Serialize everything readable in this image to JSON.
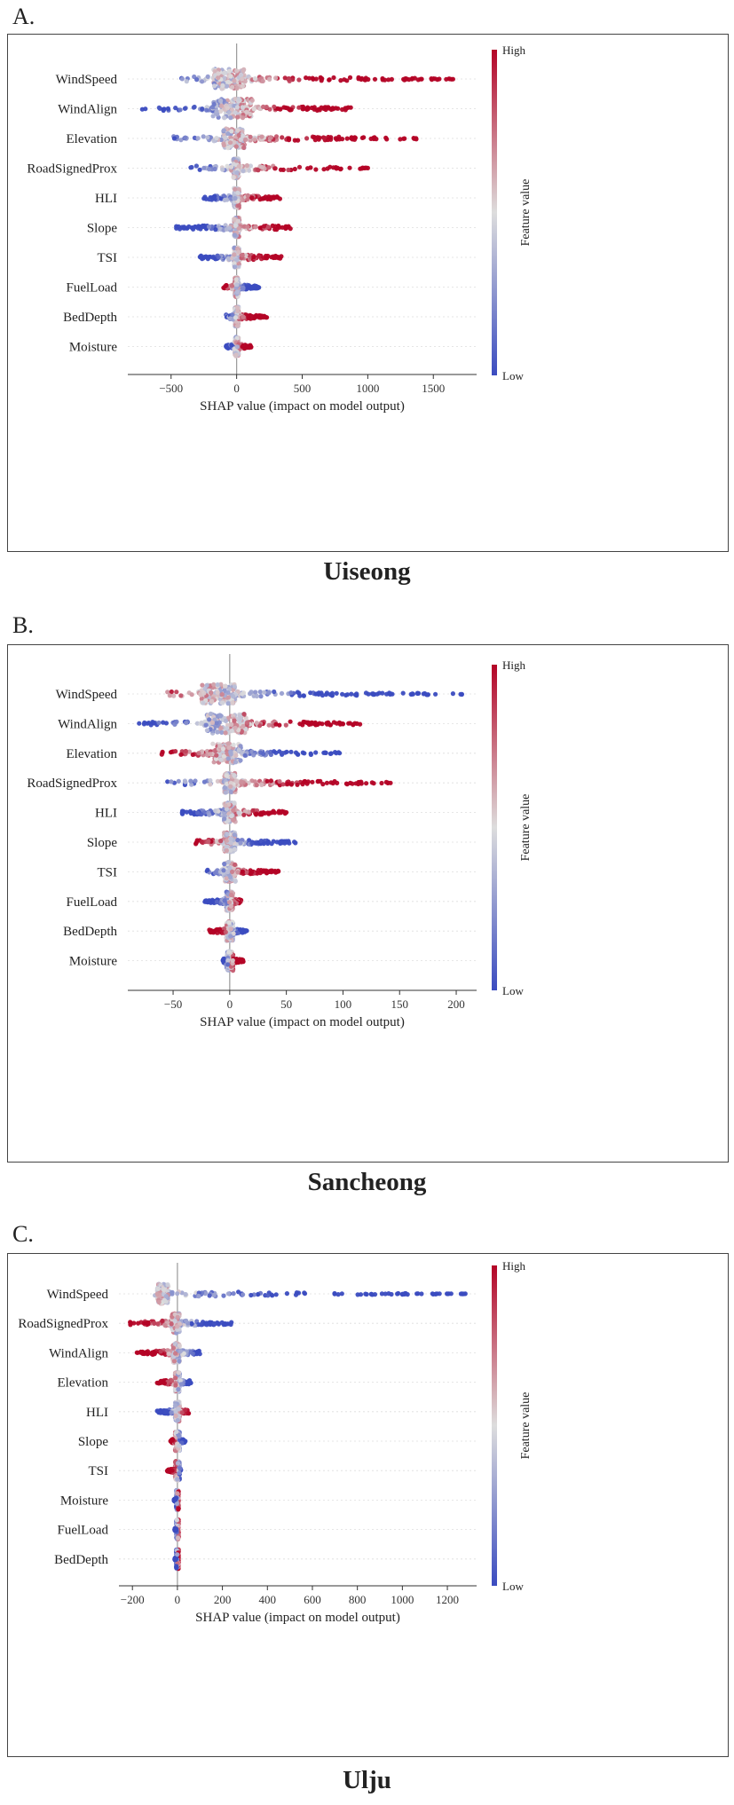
{
  "chart_data": [
    {
      "panel_label": "A.",
      "site": "Uiseong",
      "type": "scatter",
      "subtype": "beeswarm",
      "xlabel": "SHAP value (impact on model output)",
      "xticks": [
        -500,
        0,
        500,
        1000,
        1500
      ],
      "xlim": [
        -830,
        1830
      ],
      "colorbar": {
        "label": "Feature value",
        "high": "High",
        "low": "Low"
      },
      "features": [
        {
          "name": "WindSpeed",
          "min": -420,
          "max": 1650,
          "core": [
            -180,
            60
          ],
          "high_side": "positive"
        },
        {
          "name": "WindAlign",
          "min": -720,
          "max": 870,
          "core": [
            -180,
            120
          ],
          "high_side": "positive"
        },
        {
          "name": "Elevation",
          "min": -480,
          "max": 1370,
          "core": [
            -100,
            60
          ],
          "high_side": "positive"
        },
        {
          "name": "RoadSignedProx",
          "min": -350,
          "max": 1000,
          "core": [
            -25,
            15
          ],
          "high_side": "positive"
        },
        {
          "name": "HLI",
          "min": -250,
          "max": 330,
          "core": [
            -20,
            20
          ],
          "high_side": "positive"
        },
        {
          "name": "Slope",
          "min": -460,
          "max": 410,
          "core": [
            -20,
            20
          ],
          "high_side": "positive"
        },
        {
          "name": "TSI",
          "min": -280,
          "max": 340,
          "core": [
            -20,
            20
          ],
          "high_side": "positive"
        },
        {
          "name": "FuelLoad",
          "min": -100,
          "max": 170,
          "core": [
            -15,
            15
          ],
          "high_side": "negative"
        },
        {
          "name": "BedDepth",
          "min": -80,
          "max": 230,
          "core": [
            -15,
            15
          ],
          "high_side": "positive"
        },
        {
          "name": "Moisture",
          "min": -80,
          "max": 110,
          "core": [
            -15,
            15
          ],
          "high_side": "positive"
        }
      ]
    },
    {
      "panel_label": "B.",
      "site": "Sancheong",
      "type": "scatter",
      "subtype": "beeswarm",
      "xlabel": "SHAP value (impact on model output)",
      "xticks": [
        -50,
        0,
        50,
        100,
        150,
        200
      ],
      "xlim": [
        -90,
        218
      ],
      "colorbar": {
        "label": "Feature value",
        "high": "High",
        "low": "Low"
      },
      "features": [
        {
          "name": "WindSpeed",
          "min": -55,
          "max": 205,
          "core": [
            -25,
            5
          ],
          "high_side": "negative"
        },
        {
          "name": "WindAlign",
          "min": -80,
          "max": 115,
          "core": [
            -20,
            15
          ],
          "high_side": "positive"
        },
        {
          "name": "Elevation",
          "min": -60,
          "max": 97,
          "core": [
            -15,
            10
          ],
          "high_side": "negative"
        },
        {
          "name": "RoadSignedProx",
          "min": -55,
          "max": 142,
          "core": [
            -5,
            5
          ],
          "high_side": "positive"
        },
        {
          "name": "HLI",
          "min": -42,
          "max": 50,
          "core": [
            -5,
            5
          ],
          "high_side": "positive"
        },
        {
          "name": "Slope",
          "min": -30,
          "max": 58,
          "core": [
            -5,
            5
          ],
          "high_side": "negative"
        },
        {
          "name": "TSI",
          "min": -20,
          "max": 43,
          "core": [
            -5,
            5
          ],
          "high_side": "positive"
        },
        {
          "name": "FuelLoad",
          "min": -22,
          "max": 10,
          "core": [
            -3,
            3
          ],
          "high_side": "positive"
        },
        {
          "name": "BedDepth",
          "min": -18,
          "max": 15,
          "core": [
            -3,
            3
          ],
          "high_side": "negative"
        },
        {
          "name": "Moisture",
          "min": -6,
          "max": 12,
          "core": [
            -3,
            3
          ],
          "high_side": "positive"
        }
      ]
    },
    {
      "panel_label": "C.",
      "site": "Ulju",
      "type": "scatter",
      "subtype": "beeswarm",
      "xlabel": "SHAP value (impact on model output)",
      "xticks": [
        -200,
        0,
        200,
        400,
        600,
        800,
        1000,
        1200
      ],
      "xlim": [
        -260,
        1330
      ],
      "colorbar": {
        "label": "Feature value",
        "high": "High",
        "low": "Low"
      },
      "features": [
        {
          "name": "WindSpeed",
          "min": -100,
          "max": 1280,
          "core": [
            -90,
            -40
          ],
          "high_side": "negative"
        },
        {
          "name": "RoadSignedProx",
          "min": -210,
          "max": 240,
          "core": [
            -25,
            10
          ],
          "high_side": "negative"
        },
        {
          "name": "WindAlign",
          "min": -180,
          "max": 100,
          "core": [
            -20,
            10
          ],
          "high_side": "negative"
        },
        {
          "name": "Elevation",
          "min": -90,
          "max": 60,
          "core": [
            -10,
            10
          ],
          "high_side": "negative"
        },
        {
          "name": "HLI",
          "min": -90,
          "max": 50,
          "core": [
            -10,
            10
          ],
          "high_side": "positive"
        },
        {
          "name": "Slope",
          "min": -30,
          "max": 35,
          "core": [
            -10,
            10
          ],
          "high_side": "negative"
        },
        {
          "name": "TSI",
          "min": -45,
          "max": 15,
          "core": [
            -10,
            10
          ],
          "high_side": "negative"
        },
        {
          "name": "Moisture",
          "min": -15,
          "max": 5,
          "core": [
            -5,
            5
          ],
          "high_side": "positive"
        },
        {
          "name": "FuelLoad",
          "min": -12,
          "max": 5,
          "core": [
            -5,
            5
          ],
          "high_side": "positive"
        },
        {
          "name": "BedDepth",
          "min": -12,
          "max": 5,
          "core": [
            -5,
            5
          ],
          "high_side": "positive"
        }
      ]
    }
  ],
  "colors": {
    "low": "#3b4cc0",
    "mid": "#dddddd",
    "high": "#b40426",
    "frame": "#444444",
    "zero_line": "#999999"
  }
}
